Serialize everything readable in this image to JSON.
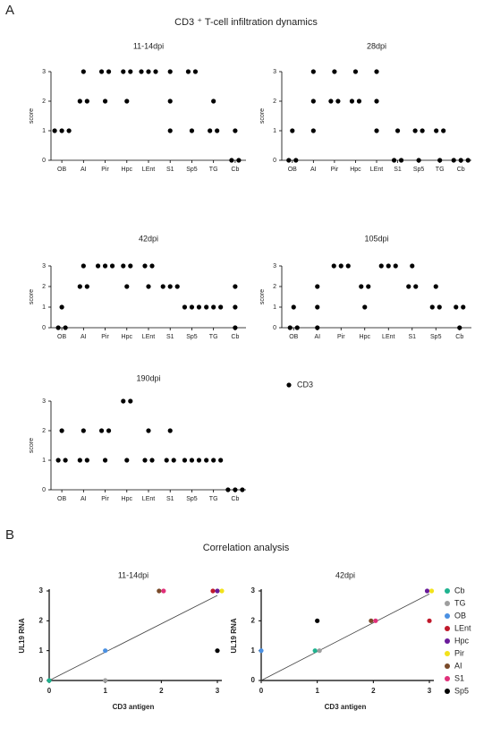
{
  "panel_labels": [
    "A",
    "B"
  ],
  "headings": [
    "CD3 ⁺ T-cell infiltration dynamics",
    "Correlation analysis"
  ],
  "strip_legend": "CD3",
  "regions": [
    {
      "name": "Cb",
      "color": "#1fb38f"
    },
    {
      "name": "TG",
      "color": "#9e9e9e"
    },
    {
      "name": "OB",
      "color": "#4a90e2"
    },
    {
      "name": "LEnt",
      "color": "#c0192b"
    },
    {
      "name": "Hpc",
      "color": "#6a1b9a"
    },
    {
      "name": "Pir",
      "color": "#f2e21b"
    },
    {
      "name": "AI",
      "color": "#7a4a2a"
    },
    {
      "name": "S1",
      "color": "#e0307a"
    },
    {
      "name": "Sp5",
      "color": "#000000"
    }
  ],
  "chart_data": [
    {
      "type": "strip",
      "title": "11-14dpi",
      "ylabel": "score",
      "ylim": [
        0,
        3
      ],
      "yticks": [
        0,
        1,
        2,
        3
      ],
      "color": "#000000",
      "categories": [
        "OB",
        "AI",
        "Pir",
        "Hpc",
        "LEnt",
        "S1",
        "Sp5",
        "TG",
        "Cb"
      ],
      "values": [
        [
          1,
          1,
          1
        ],
        [
          2,
          3,
          2
        ],
        [
          3,
          2,
          3
        ],
        [
          3,
          2,
          3
        ],
        [
          3,
          3,
          3
        ],
        [
          3,
          2,
          1
        ],
        [
          3,
          1,
          3
        ],
        [
          1,
          2,
          1
        ],
        [
          0,
          1,
          0
        ]
      ]
    },
    {
      "type": "strip",
      "title": "28dpi",
      "ylabel": "score",
      "ylim": [
        0,
        3
      ],
      "yticks": [
        0,
        1,
        2,
        3
      ],
      "color": "#000000",
      "categories": [
        "OB",
        "AI",
        "Pir",
        "Hpc",
        "LEnt",
        "S1",
        "Sp5",
        "TG",
        "Cb"
      ],
      "values": [
        [
          0,
          1,
          0
        ],
        [
          1,
          2,
          3
        ],
        [
          2,
          3,
          2
        ],
        [
          2,
          3,
          2
        ],
        [
          3,
          2,
          1
        ],
        [
          0,
          1,
          0
        ],
        [
          1,
          0,
          1
        ],
        [
          1,
          0,
          1
        ],
        [
          0,
          0,
          0
        ]
      ]
    },
    {
      "type": "strip",
      "title": "42dpi",
      "ylabel": "score",
      "ylim": [
        0,
        3
      ],
      "yticks": [
        0,
        1,
        2,
        3
      ],
      "color": "#000000",
      "categories": [
        "OB",
        "AI",
        "Pir",
        "Hpc",
        "LEnt",
        "S1",
        "Sp5",
        "TG",
        "Cb"
      ],
      "values": [
        [
          0,
          1,
          0
        ],
        [
          2,
          3,
          2
        ],
        [
          3,
          3,
          3
        ],
        [
          3,
          2,
          3
        ],
        [
          3,
          2,
          3
        ],
        [
          2,
          2,
          2
        ],
        [
          1,
          1,
          1
        ],
        [
          1,
          1,
          1
        ],
        [
          2,
          1,
          0
        ]
      ]
    },
    {
      "type": "strip",
      "title": "105dpi",
      "ylabel": "score",
      "ylim": [
        0,
        3
      ],
      "yticks": [
        0,
        1,
        2,
        3
      ],
      "color": "#000000",
      "categories": [
        "OB",
        "AI",
        "Pir",
        "Hpc",
        "LEnt",
        "S1",
        "Sp5",
        "Cb"
      ],
      "values": [
        [
          0,
          1,
          0
        ],
        [
          2,
          1,
          0
        ],
        [
          3,
          3,
          3
        ],
        [
          2,
          1,
          2
        ],
        [
          3,
          3,
          3
        ],
        [
          2,
          3,
          2
        ],
        [
          1,
          2,
          1
        ],
        [
          1,
          0,
          1
        ]
      ]
    },
    {
      "type": "strip",
      "title": "190dpi",
      "ylabel": "score",
      "ylim": [
        0,
        3
      ],
      "yticks": [
        0,
        1,
        2,
        3
      ],
      "color": "#000000",
      "categories": [
        "OB",
        "AI",
        "Pir",
        "Hpc",
        "LEnt",
        "S1",
        "Sp5",
        "TG",
        "Cb"
      ],
      "values": [
        [
          1,
          2,
          1
        ],
        [
          1,
          2,
          1
        ],
        [
          2,
          1,
          2
        ],
        [
          3,
          1,
          3
        ],
        [
          1,
          2,
          1
        ],
        [
          1,
          2,
          1
        ],
        [
          1,
          1,
          1
        ],
        [
          1,
          1,
          1
        ],
        [
          0,
          0,
          0
        ]
      ]
    },
    {
      "type": "scatter",
      "title": "11-14dpi",
      "xlabel": "CD3 antigen",
      "ylabel": "UL19 RNA",
      "xlim": [
        0,
        3
      ],
      "ylim": [
        0,
        3
      ],
      "xticks": [
        0,
        1,
        2,
        3
      ],
      "yticks": [
        0,
        1,
        2,
        3
      ],
      "x": [
        0,
        1,
        1,
        3,
        3,
        3,
        2,
        2,
        3
      ],
      "values": [
        0,
        0,
        1,
        3,
        3,
        3,
        3,
        3,
        1
      ],
      "fit_line": {
        "x": [
          0,
          3
        ],
        "y": [
          0,
          2.85
        ]
      }
    },
    {
      "type": "scatter",
      "title": "42dpi",
      "xlabel": "CD3 antigen",
      "ylabel": "UL19 RNA",
      "xlim": [
        0,
        3
      ],
      "ylim": [
        0,
        3
      ],
      "xticks": [
        0,
        1,
        2,
        3
      ],
      "yticks": [
        0,
        1,
        2,
        3
      ],
      "x": [
        1,
        1,
        0,
        3,
        3,
        3,
        2,
        2,
        1
      ],
      "values": [
        1,
        1,
        1,
        2,
        3,
        3,
        2,
        2,
        2
      ],
      "fit_line": {
        "x": [
          0,
          3
        ],
        "y": [
          0,
          2.9
        ]
      }
    }
  ]
}
